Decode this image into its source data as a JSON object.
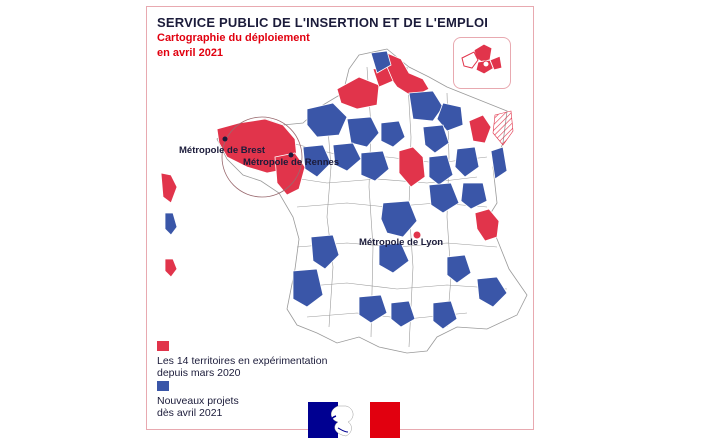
{
  "header": {
    "title": "SERVICE PUBLIC DE L'INSERTION ET DE L'EMPLOI",
    "subtitle_line1": "Cartographie du déploiement",
    "subtitle_line2": "en avril 2021"
  },
  "labels": {
    "brest": "Métropole de Brest",
    "rennes": "Métropole de Rennes",
    "lyon": "Métropole de Lyon"
  },
  "legend": {
    "red_line1": "Les 14 territoires en expérimentation",
    "red_line2": "depuis mars 2020",
    "blue_line1": "Nouveaux projets",
    "blue_line2": "dès avril 2021"
  },
  "colors": {
    "red": "#e1344b",
    "blue": "#3a56a8",
    "border": "#e8a9b0",
    "text": "#1b1b3a"
  },
  "icons": {
    "logo": "marianne-logo-icon"
  }
}
